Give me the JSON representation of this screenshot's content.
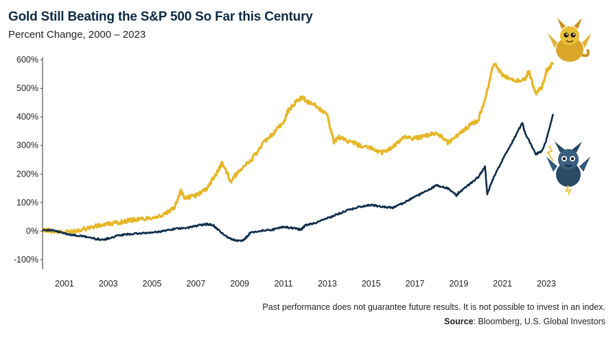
{
  "header": {
    "title": "Gold Still Beating the S&P 500 So Far this Century",
    "subtitle": "Percent Change, 2000 – 2023"
  },
  "footer": {
    "disclaimer": "Past performance does not guarantee future results. It is not possible to invest in an index.",
    "source_label": "Source",
    "source_text": ": Bloomberg, U.S. Global Investors"
  },
  "colors": {
    "gold": "#e6b627",
    "sp500": "#0f2d4a",
    "axis": "#333333"
  },
  "icons": {
    "gold_series": "gold-dragon-icon",
    "sp500_series": "blue-dragon-icon"
  },
  "chart_data": {
    "type": "line",
    "title": "Gold Still Beating the S&P 500 So Far this Century",
    "subtitle": "Percent Change, 2000 – 2023",
    "xlabel": "",
    "ylabel": "",
    "xlim": [
      2000,
      2023.5
    ],
    "ylim": [
      -100,
      600
    ],
    "grid": false,
    "y_ticks": [
      -100,
      0,
      100,
      200,
      300,
      400,
      500,
      600
    ],
    "y_tick_labels": [
      "-100%",
      "0%",
      "100%",
      "200%",
      "300%",
      "400%",
      "500%",
      "600%"
    ],
    "x_ticks": [
      2001,
      2003,
      2005,
      2007,
      2009,
      2011,
      2013,
      2015,
      2017,
      2019,
      2021,
      2023
    ],
    "x_tick_labels": [
      "2001",
      "2003",
      "2005",
      "2007",
      "2009",
      "2011",
      "2013",
      "2015",
      "2017",
      "2019",
      "2021",
      "2023"
    ],
    "series": [
      {
        "key": "gold",
        "color": "#e6b627",
        "x": [
          2000.0,
          2000.5,
          2001.0,
          2001.5,
          2002.0,
          2002.5,
          2003.0,
          2003.5,
          2004.0,
          2004.5,
          2005.0,
          2005.5,
          2006.0,
          2006.3,
          2006.5,
          2007.0,
          2007.5,
          2008.0,
          2008.2,
          2008.6,
          2008.8,
          2009.0,
          2009.5,
          2010.0,
          2010.5,
          2011.0,
          2011.2,
          2011.6,
          2011.9,
          2012.0,
          2012.5,
          2013.0,
          2013.3,
          2013.5,
          2014.0,
          2014.5,
          2015.0,
          2015.5,
          2016.0,
          2016.5,
          2017.0,
          2017.5,
          2018.0,
          2018.5,
          2019.0,
          2019.5,
          2019.9,
          2020.3,
          2020.6,
          2021.0,
          2021.5,
          2022.0,
          2022.2,
          2022.5,
          2022.8,
          2023.0,
          2023.3
        ],
        "y": [
          5,
          0,
          -5,
          2,
          10,
          18,
          25,
          30,
          38,
          42,
          48,
          55,
          80,
          140,
          115,
          125,
          150,
          210,
          240,
          175,
          195,
          215,
          245,
          300,
          340,
          380,
          420,
          455,
          470,
          455,
          440,
          405,
          310,
          330,
          315,
          300,
          290,
          275,
          295,
          330,
          325,
          335,
          345,
          310,
          340,
          370,
          390,
          490,
          590,
          545,
          525,
          530,
          560,
          480,
          505,
          560,
          590
        ]
      },
      {
        "key": "sp500",
        "color": "#0f2d4a",
        "x": [
          2000.0,
          2000.5,
          2001.0,
          2001.5,
          2002.0,
          2002.5,
          2002.8,
          2003.0,
          2003.5,
          2004.0,
          2004.5,
          2005.0,
          2005.5,
          2006.0,
          2006.5,
          2007.0,
          2007.5,
          2007.8,
          2008.0,
          2008.5,
          2009.0,
          2009.2,
          2009.5,
          2010.0,
          2010.5,
          2011.0,
          2011.5,
          2011.8,
          2012.0,
          2012.5,
          2013.0,
          2013.5,
          2014.0,
          2014.5,
          2015.0,
          2015.5,
          2016.0,
          2016.5,
          2017.0,
          2017.5,
          2018.0,
          2018.5,
          2018.9,
          2019.0,
          2019.5,
          2019.9,
          2020.2,
          2020.3,
          2020.6,
          2021.0,
          2021.5,
          2021.9,
          2022.0,
          2022.5,
          2022.8,
          2023.0,
          2023.3
        ],
        "y": [
          5,
          2,
          -8,
          -15,
          -20,
          -28,
          -30,
          -25,
          -15,
          -10,
          -8,
          -5,
          0,
          8,
          10,
          18,
          25,
          20,
          5,
          -25,
          -35,
          -30,
          -5,
          2,
          5,
          15,
          10,
          5,
          20,
          30,
          45,
          60,
          75,
          85,
          92,
          85,
          82,
          100,
          120,
          140,
          160,
          150,
          125,
          135,
          165,
          190,
          225,
          130,
          190,
          250,
          320,
          380,
          350,
          270,
          280,
          320,
          410
        ]
      }
    ]
  }
}
